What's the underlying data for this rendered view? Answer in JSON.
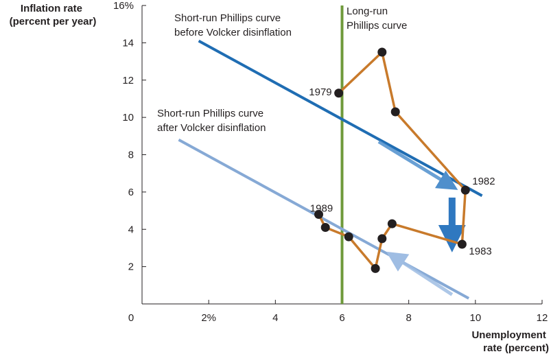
{
  "chart_data": {
    "type": "line",
    "xlabel": [
      "Unemployment",
      "rate (percent)"
    ],
    "ylabel": [
      "Inflation rate",
      "(percent per year)"
    ],
    "xlim": [
      0,
      12
    ],
    "ylim": [
      0,
      16
    ],
    "x_ticks": [
      {
        "value": 0,
        "label": "0"
      },
      {
        "value": 2,
        "label": "2%"
      },
      {
        "value": 4,
        "label": "4"
      },
      {
        "value": 6,
        "label": "6"
      },
      {
        "value": 8,
        "label": "8"
      },
      {
        "value": 10,
        "label": "10"
      },
      {
        "value": 12,
        "label": "12"
      }
    ],
    "y_ticks": [
      {
        "value": 2,
        "label": "2"
      },
      {
        "value": 4,
        "label": "4"
      },
      {
        "value": 6,
        "label": "6"
      },
      {
        "value": 8,
        "label": "8"
      },
      {
        "value": 10,
        "label": "10"
      },
      {
        "value": 12,
        "label": "12"
      },
      {
        "value": 14,
        "label": "14"
      },
      {
        "value": 16,
        "label": "16%"
      }
    ],
    "lines": [
      {
        "label": [
          "Short-run Phillips curve",
          "before Volcker disinflation"
        ],
        "color": "#1f6db3",
        "points": [
          [
            1.7,
            14.1
          ],
          [
            10.2,
            5.8
          ]
        ]
      },
      {
        "label": [
          "Short-run Phillips curve",
          "after Volcker disinflation"
        ],
        "color": "#86a9d5",
        "points": [
          [
            1.1,
            8.8
          ],
          [
            9.8,
            0.3
          ]
        ]
      }
    ],
    "vertical_line": {
      "label": [
        "Long-run",
        "Phillips curve"
      ],
      "x": 6,
      "color": "#6f9a3b"
    },
    "series": [
      {
        "color": "#c87a2b",
        "points": [
          {
            "x": 5.9,
            "y": 11.3,
            "label": "1979"
          },
          {
            "x": 7.2,
            "y": 13.5,
            "label": ""
          },
          {
            "x": 7.6,
            "y": 10.3,
            "label": ""
          },
          {
            "x": 9.7,
            "y": 6.1,
            "label": "1982"
          },
          {
            "x": 9.6,
            "y": 3.2,
            "label": "1983"
          },
          {
            "x": 7.5,
            "y": 4.3,
            "label": ""
          },
          {
            "x": 7.2,
            "y": 3.5,
            "label": ""
          },
          {
            "x": 7.0,
            "y": 1.9,
            "label": ""
          },
          {
            "x": 6.2,
            "y": 3.6,
            "label": ""
          },
          {
            "x": 5.5,
            "y": 4.1,
            "label": ""
          },
          {
            "x": 5.3,
            "y": 4.8,
            "label": "1989"
          }
        ]
      }
    ],
    "arrows": [
      {
        "from": [
          7.1,
          8.7
        ],
        "to": [
          9.3,
          6.3
        ],
        "color": "#4f8fcc"
      },
      {
        "from": [
          9.3,
          5.7
        ],
        "to": [
          9.3,
          3.5
        ],
        "color": "#2f78c0"
      },
      {
        "from": [
          9.3,
          0.5
        ],
        "to": [
          7.5,
          2.6
        ],
        "color": "#9fbde3"
      }
    ],
    "grid": false
  }
}
